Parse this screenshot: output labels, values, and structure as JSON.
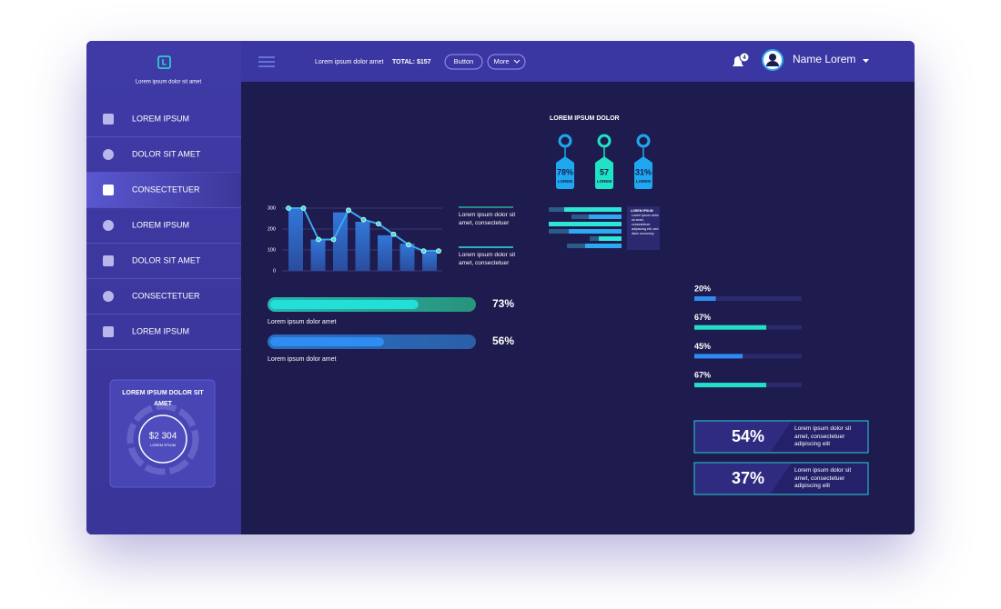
{
  "sidebar": {
    "logo": "L",
    "tagline": "Lorem ipsum dolor sit amet",
    "menu": [
      "LOREM IPSUM",
      "DOLOR SIT AMET",
      "CONSECTETUER",
      "LOREM IPSUM",
      "DOLOR SIT AMET",
      "CONSECTETUER",
      "LOREM IPSUM"
    ],
    "card": {
      "title": "LOREM IPSUM DOLOR SIT AMET",
      "amount": "$2 304",
      "caption": "LOREM IPSUM"
    }
  },
  "topbar": {
    "text": "Lorem ipsum dolor amet",
    "total": "TOTAL: $157",
    "button": "Button",
    "more": "More",
    "notifications": "4",
    "user": "Name Lorem"
  },
  "bar_chart": {
    "type": "bar",
    "ylim": [
      0,
      300
    ],
    "yticks": [
      0,
      100,
      200,
      300
    ],
    "values": [
      300,
      150,
      280,
      235,
      170,
      130,
      90
    ],
    "line": [
      300,
      300,
      150,
      150,
      290,
      245,
      225,
      175,
      125,
      95,
      95
    ],
    "legend": [
      "Lorem ipsum dolor sit amet, consectetuer",
      "Lorem ipsum dolor sit amet, consectetuer"
    ]
  },
  "progress": {
    "xlim": [
      0,
      100
    ],
    "items": [
      {
        "value": 73,
        "value_label": "73%",
        "caption": "Lorem ipsum dolor amet"
      },
      {
        "value": 56,
        "value_label": "56%",
        "caption": "Lorem ipsum dolor amet"
      }
    ]
  },
  "tags": {
    "title": "LOREM IPSUM DOLOR",
    "items": [
      {
        "value": "78%",
        "label": "LOREM"
      },
      {
        "value": "57",
        "label": "LOREM"
      },
      {
        "value": "31%",
        "label": "LOREM"
      }
    ],
    "note": {
      "title": "LOREM IPSUM",
      "text": "Lorem ipsum dolor sit amet, consectetuer adipiscing elit, sed diam nonummy"
    }
  },
  "bars": {
    "xlim": [
      0,
      100
    ],
    "values": [
      20,
      67,
      45,
      67
    ],
    "value_labels": [
      "20%",
      "67%",
      "45%",
      "67%"
    ]
  },
  "stats": [
    {
      "value": "54%",
      "text": "Lorem ipsum dolor sit amet, consectetuer adipiscing elit"
    },
    {
      "value": "37%",
      "text": "Lorem ipsum dolor sit amet, consectetuer adipiscing elit"
    }
  ]
}
